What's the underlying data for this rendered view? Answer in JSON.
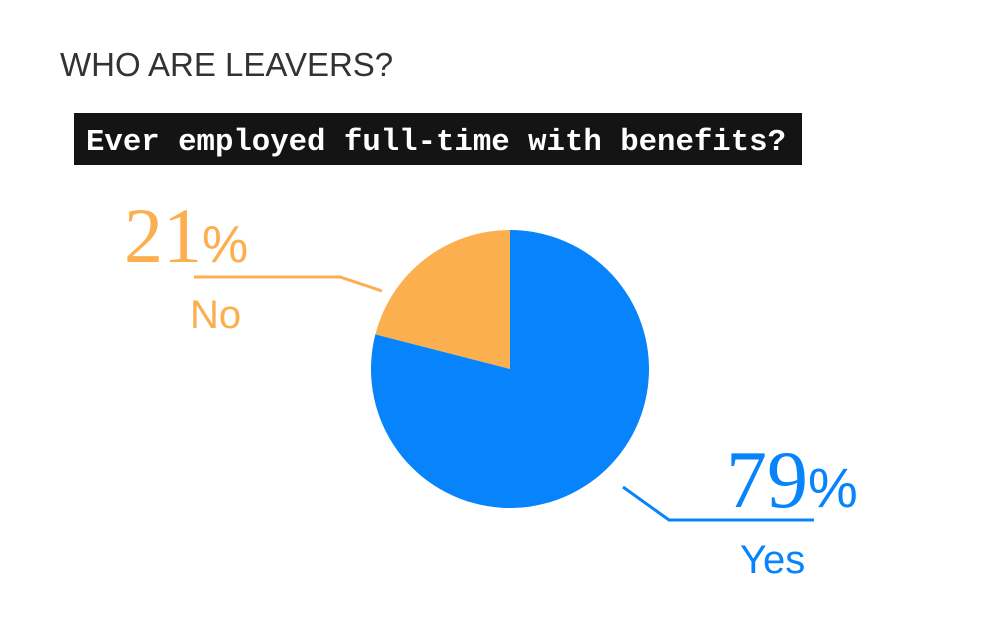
{
  "page_title": "WHO ARE LEAVERS?",
  "chart_data": {
    "type": "pie",
    "title": "Ever employed full-time with benefits?",
    "categories": [
      "No",
      "Yes"
    ],
    "values": [
      21,
      79
    ],
    "unit": "%",
    "colors": [
      "#FCAF4E",
      "#0784FB"
    ],
    "labels": [
      {
        "category": "No",
        "value_text": "21",
        "unit": "%"
      },
      {
        "category": "Yes",
        "value_text": "79",
        "unit": "%"
      }
    ]
  }
}
